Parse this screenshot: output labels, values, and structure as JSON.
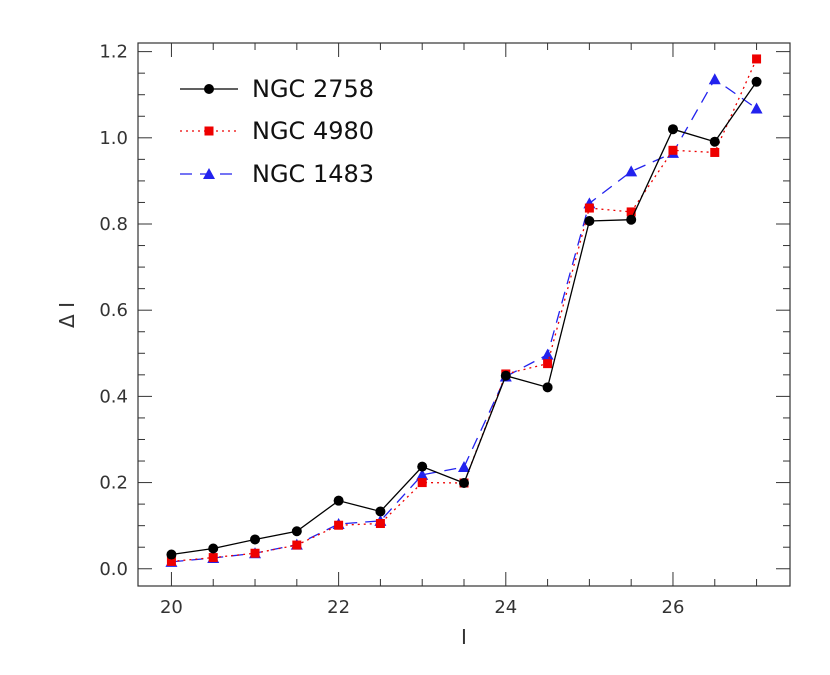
{
  "chart_data": {
    "type": "line",
    "title": "",
    "xlabel": "I",
    "ylabel": "Δ I",
    "xlim": [
      19.6,
      27.4
    ],
    "ylim": [
      -0.04,
      1.22
    ],
    "xticks": [
      20,
      22,
      24,
      26
    ],
    "xtick_labels": [
      "20",
      "22",
      "24",
      "26"
    ],
    "yticks": [
      0.0,
      0.2,
      0.4,
      0.6,
      0.8,
      1.0,
      1.2
    ],
    "ytick_labels": [
      "0.0",
      "0.2",
      "0.4",
      "0.6",
      "0.8",
      "1.0",
      "1.2"
    ],
    "grid": false,
    "legend_position": "top-left",
    "x": [
      20.0,
      20.5,
      21.0,
      21.5,
      22.0,
      22.5,
      23.0,
      23.5,
      24.0,
      24.5,
      25.0,
      25.5,
      26.0,
      26.5,
      27.0
    ],
    "series": [
      {
        "name": "NGC 2758",
        "color": "#000000",
        "line_style": "solid",
        "marker": "circle",
        "values": [
          0.033,
          0.047,
          0.068,
          0.087,
          0.158,
          0.133,
          0.237,
          0.199,
          0.448,
          0.421,
          0.807,
          0.81,
          1.02,
          0.991,
          1.13
        ]
      },
      {
        "name": "NGC 4980",
        "color": "#ee0000",
        "line_style": "dotted",
        "marker": "square",
        "values": [
          0.017,
          0.026,
          0.036,
          0.055,
          0.101,
          0.105,
          0.2,
          0.199,
          0.452,
          0.476,
          0.837,
          0.828,
          0.971,
          0.966,
          1.183
        ]
      },
      {
        "name": "NGC 1483",
        "color": "#2222ee",
        "line_style": "dashed",
        "marker": "triangle",
        "values": [
          0.016,
          0.025,
          0.036,
          0.056,
          0.104,
          0.111,
          0.218,
          0.236,
          0.446,
          0.497,
          0.848,
          0.922,
          0.965,
          1.136,
          1.068
        ]
      }
    ]
  }
}
